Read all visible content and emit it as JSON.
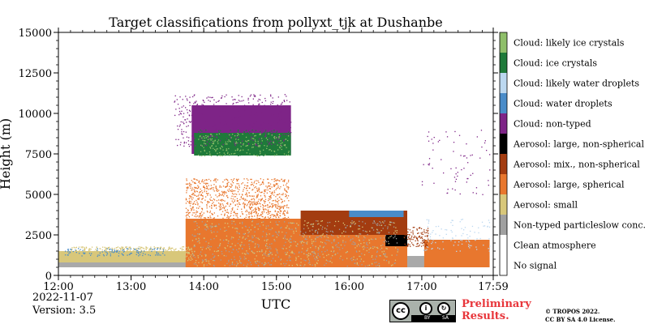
{
  "chart_data": {
    "type": "heatmap",
    "title": "Target classifications from pollyxt_tjk at Dushanbe",
    "xlabel": "UTC",
    "ylabel": "Height (m)",
    "x_ticks": [
      "12:00",
      "13:00",
      "14:00",
      "15:00",
      "16:00",
      "17:00",
      "17:59"
    ],
    "y_ticks": [
      "0",
      "2500",
      "5000",
      "7500",
      "10000",
      "12500",
      "15000"
    ],
    "xlim": [
      "12:00",
      "17:59"
    ],
    "ylim": [
      0,
      15000
    ],
    "legend_position": "right",
    "classes": [
      {
        "label": "No signal",
        "color": "#ffffff"
      },
      {
        "label": "Clean atmosphere",
        "color": "#ffffff"
      },
      {
        "label": "Non-typed particleslow conc.",
        "color": "#a0a0a0"
      },
      {
        "label": "Aerosol: small",
        "color": "#d8c77a"
      },
      {
        "label": "Aerosol: large, spherical",
        "color": "#e8772e"
      },
      {
        "label": "Aerosol: mix., non-spherical",
        "color": "#a33c10"
      },
      {
        "label": "Aerosol: large, non-spherical",
        "color": "#000000"
      },
      {
        "label": "Cloud: non-typed",
        "color": "#7e2487"
      },
      {
        "label": "Cloud: water droplets",
        "color": "#4a8cc9"
      },
      {
        "label": "Cloud: likely water droplets",
        "color": "#bcd8f0"
      },
      {
        "label": "Cloud: ice crystals",
        "color": "#1f7a3a"
      },
      {
        "label": "Cloud: likely ice crystals",
        "color": "#8fbf6a"
      }
    ],
    "regions": [
      {
        "class": 2,
        "start": "12:00",
        "end": "17:56",
        "bottom": 500,
        "top": 1200
      },
      {
        "class": 3,
        "start": "12:00",
        "end": "13:45",
        "bottom": 800,
        "top": 1500
      },
      {
        "class": 4,
        "start": "13:45",
        "end": "16:48",
        "bottom": 500,
        "top": 3500
      },
      {
        "class": 4,
        "start": "17:02",
        "end": "17:56",
        "bottom": 500,
        "top": 2200
      },
      {
        "class": 5,
        "start": "15:20",
        "end": "16:48",
        "bottom": 2500,
        "top": 4000
      },
      {
        "class": 6,
        "start": "16:30",
        "end": "16:48",
        "bottom": 1800,
        "top": 2500
      },
      {
        "class": 7,
        "start": "13:50",
        "end": "15:12",
        "bottom": 7500,
        "top": 10500
      },
      {
        "class": 10,
        "start": "13:52",
        "end": "15:12",
        "bottom": 7400,
        "top": 8800
      },
      {
        "class": 8,
        "start": "16:00",
        "end": "16:45",
        "bottom": 3600,
        "top": 4000
      }
    ]
  },
  "date_label": "2022-11-07",
  "version_label": "Version: 3.5",
  "license": {
    "by": "BY",
    "sa": "SA"
  },
  "preliminary_line1": "Preliminary",
  "preliminary_line2": "Results.",
  "copyright_line1": "© TROPOS 2022.",
  "copyright_line2": "CC BY SA 4.0 License."
}
